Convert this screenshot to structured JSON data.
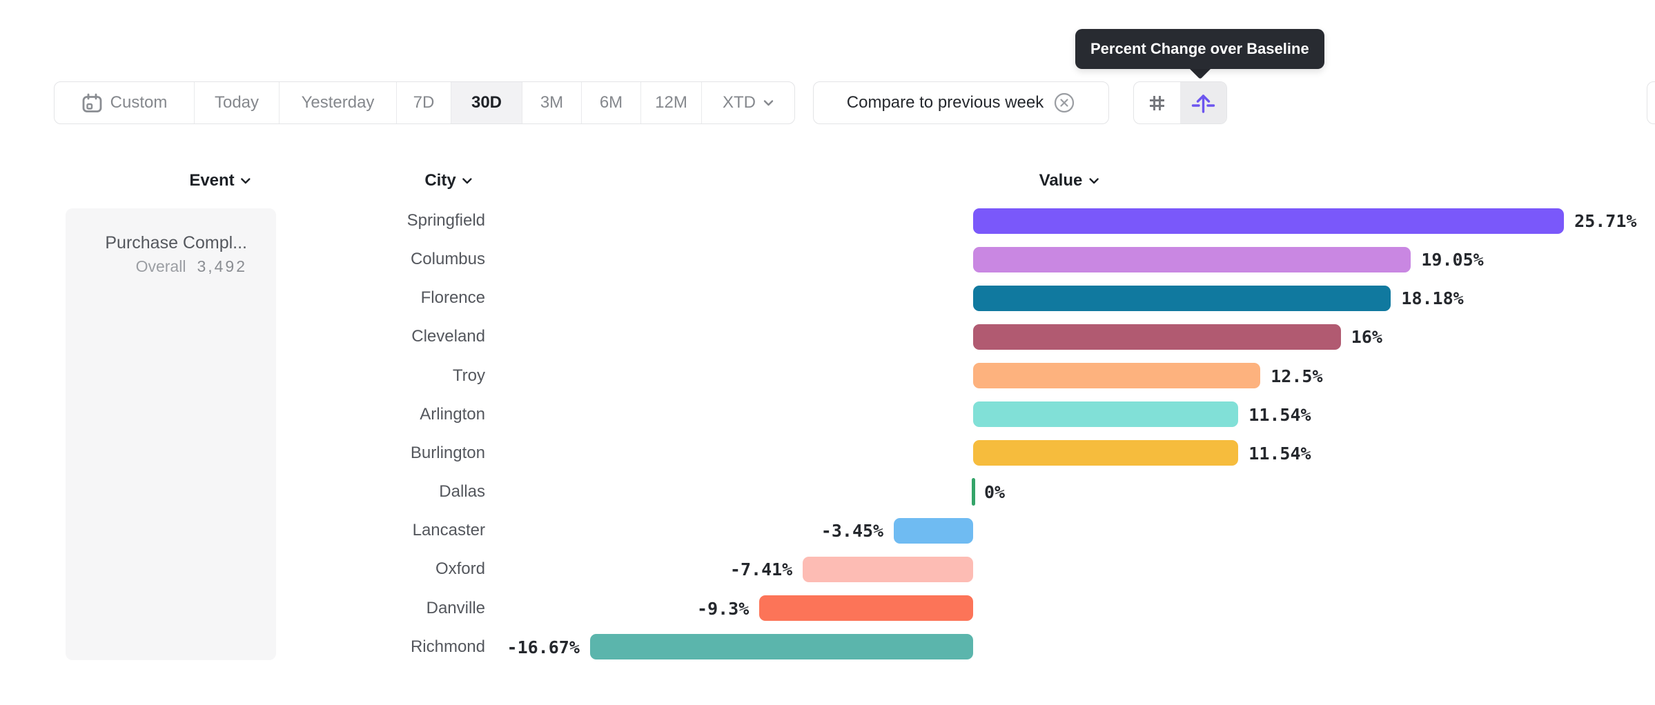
{
  "tooltip": {
    "text": "Percent Change over Baseline"
  },
  "toolbar": {
    "date_ranges": [
      {
        "label": "Custom"
      },
      {
        "label": "Today"
      },
      {
        "label": "Yesterday"
      },
      {
        "label": "7D"
      },
      {
        "label": "30D"
      },
      {
        "label": "3M"
      },
      {
        "label": "6M"
      },
      {
        "label": "12M"
      },
      {
        "label": "XTD"
      }
    ],
    "selected_range": "30D",
    "compare_chip": {
      "label": "Compare to previous week"
    },
    "view_toggle": {
      "options": [
        "number-view",
        "percent-change-view"
      ],
      "selected": "percent-change-view"
    }
  },
  "columns": {
    "event": "Event",
    "city": "City",
    "value": "Value"
  },
  "event_panel": {
    "name": "Purchase Compl...",
    "overall_label": "Overall",
    "overall_value": "3,492"
  },
  "chart_data": {
    "type": "bar",
    "orientation": "horizontal",
    "title": "Percent Change over Baseline",
    "xlabel": "Value",
    "unit": "%",
    "grid": false,
    "zero_baseline": true,
    "categories": [
      "Springfield",
      "Columbus",
      "Florence",
      "Cleveland",
      "Troy",
      "Arlington",
      "Burlington",
      "Dallas",
      "Lancaster",
      "Oxford",
      "Danville",
      "Richmond"
    ],
    "values": [
      25.71,
      19.05,
      18.18,
      16,
      12.5,
      11.54,
      11.54,
      0,
      -3.45,
      -7.41,
      -9.3,
      -16.67
    ],
    "value_labels": [
      "25.71%",
      "19.05%",
      "18.18%",
      "16%",
      "12.5%",
      "11.54%",
      "11.54%",
      "0%",
      "-3.45%",
      "-7.41%",
      "-9.3%",
      "-16.67%"
    ],
    "bar_colors": [
      "#7a58fa",
      "#c987e2",
      "#10799f",
      "#b15a71",
      "#fdb27e",
      "#81e0d7",
      "#f6bc3d",
      "#34a469",
      "#6fbbf2",
      "#fdbcb4",
      "#fc7458",
      "#5bb5ac"
    ]
  },
  "accent_colors": {
    "toggle_selected_icon": "#6c55ef",
    "tooltip_bg": "#282b31"
  }
}
